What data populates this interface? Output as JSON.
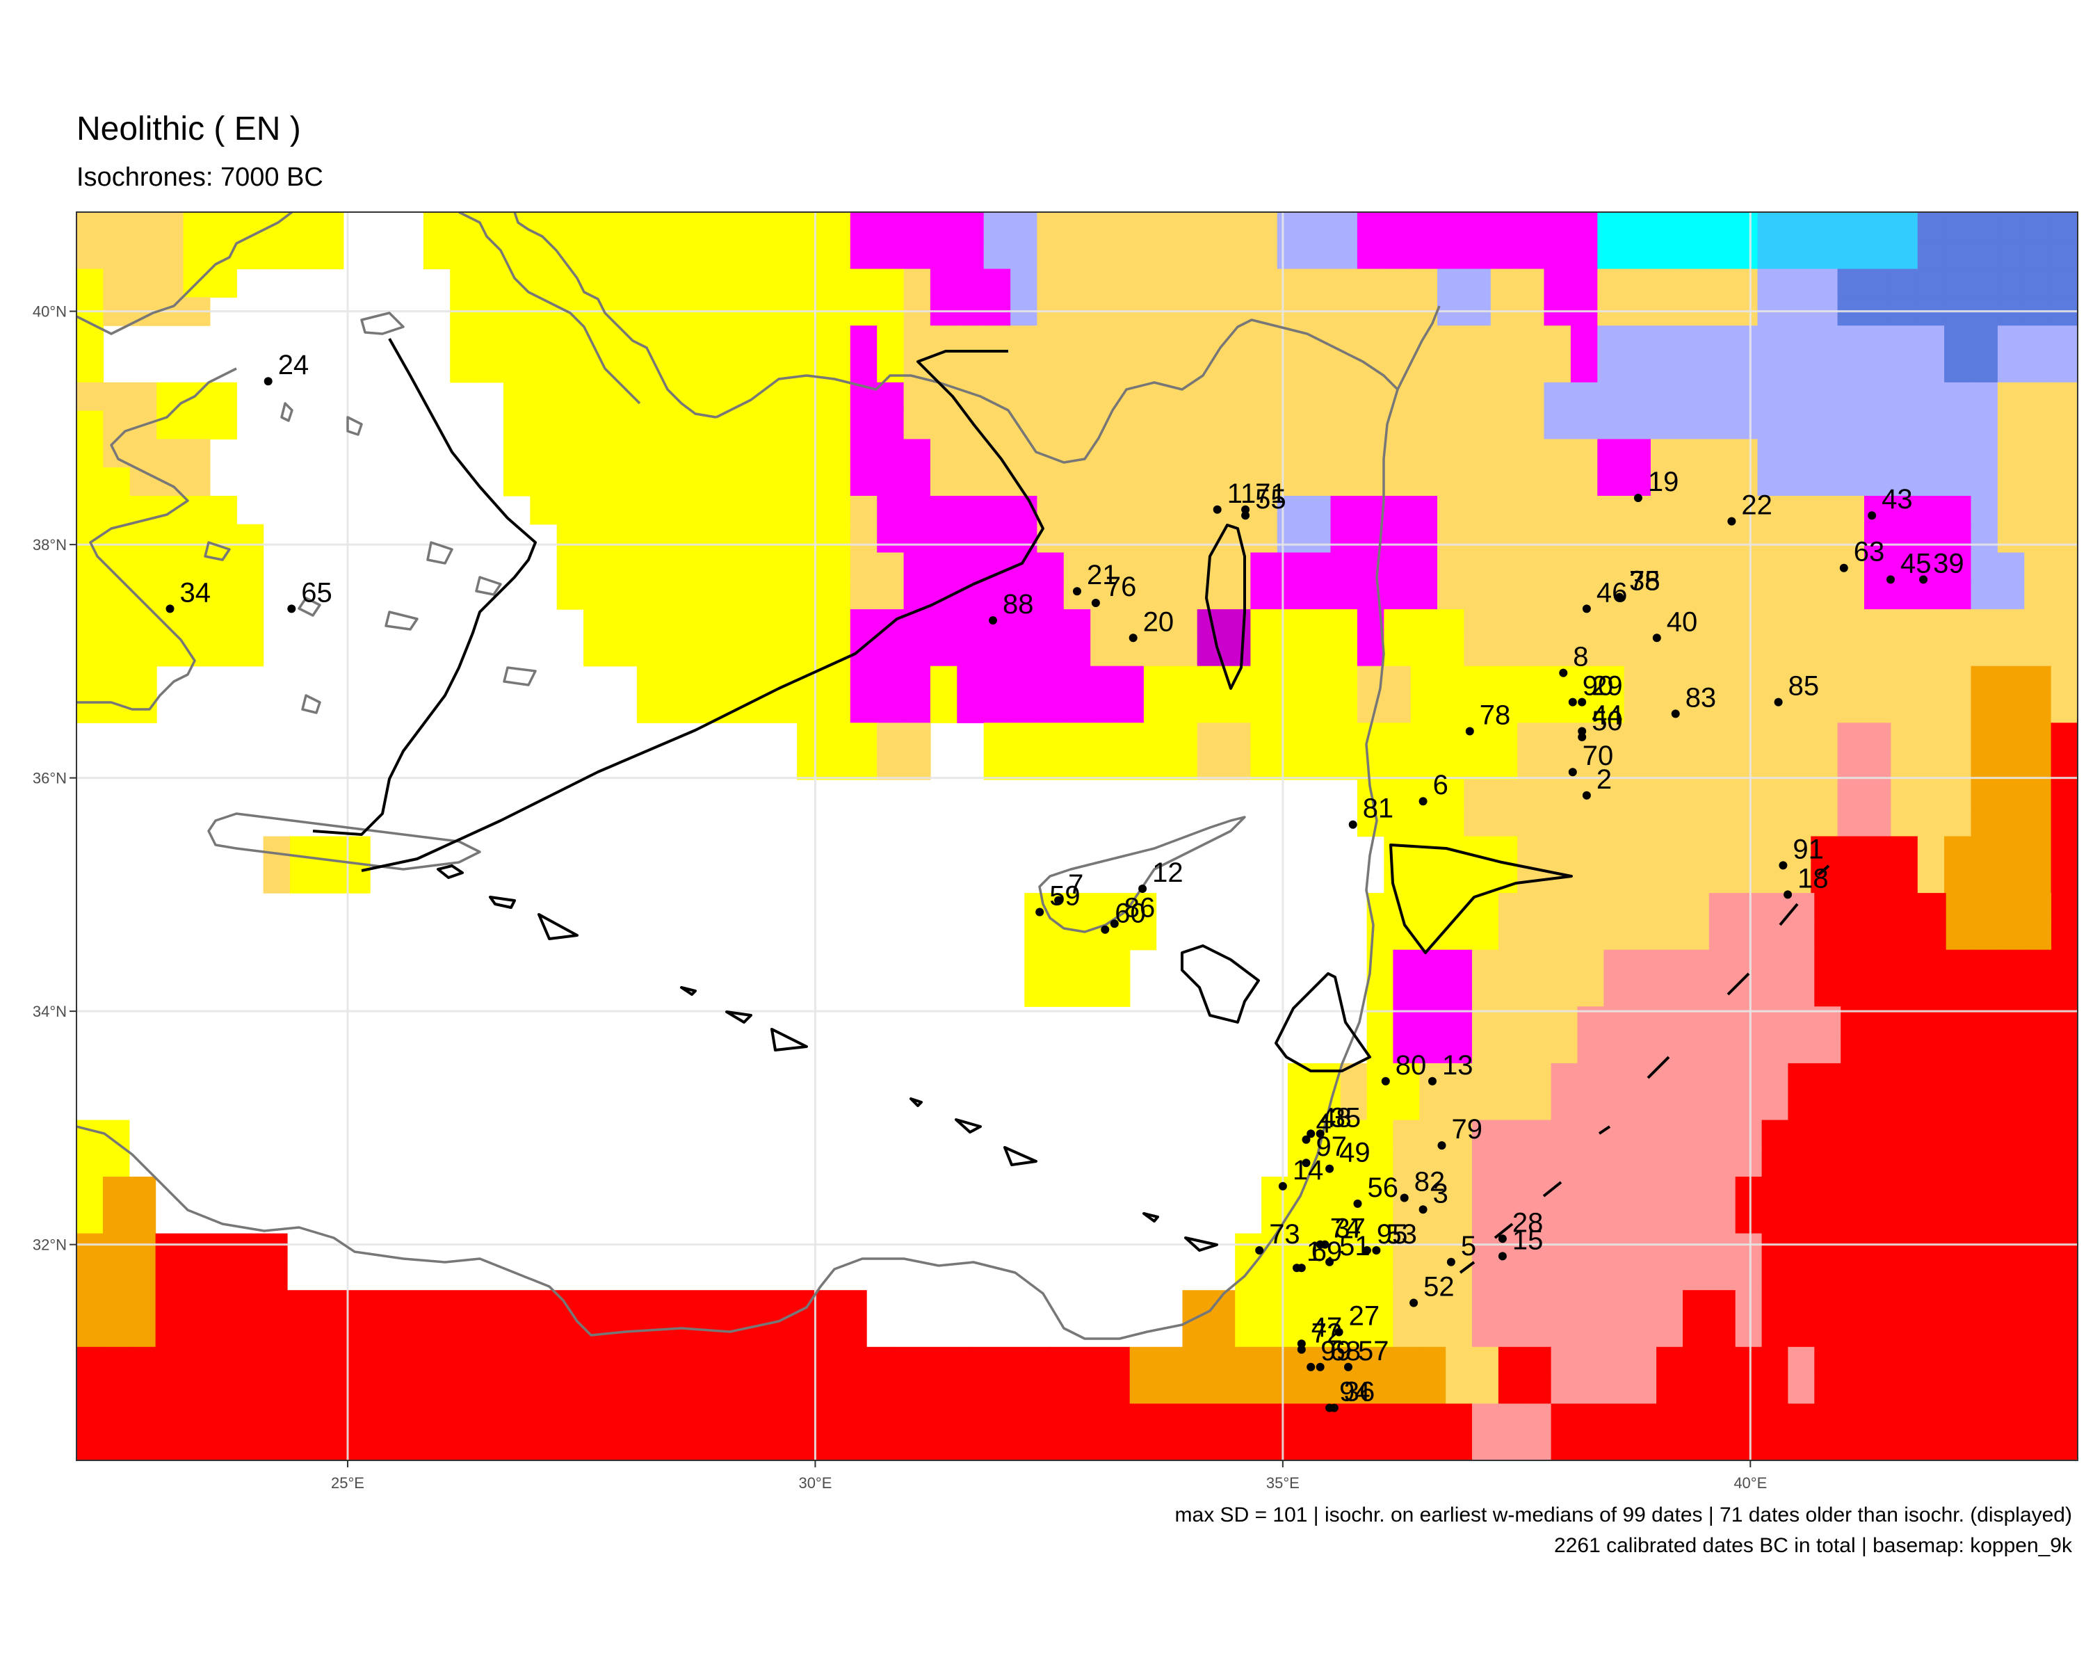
{
  "title": "Neolithic ( EN )",
  "subtitle": "Isochrones: 7000 BC",
  "footer": {
    "line1": "max SD = 101 | isochr. on earliest w-medians of 99 dates | 71 dates older than isochr. (displayed)",
    "line2": "2261 calibrated dates BC in total | basemap: koppen_9k"
  },
  "axes": {
    "x_ticks": [
      {
        "value": 25,
        "label": "25°E"
      },
      {
        "value": 30,
        "label": "30°E"
      },
      {
        "value": 35,
        "label": "35°E"
      },
      {
        "value": 40,
        "label": "40°E"
      }
    ],
    "y_ticks": [
      {
        "value": 32,
        "label": "32°N"
      },
      {
        "value": 34,
        "label": "34°N"
      },
      {
        "value": 36,
        "label": "36°N"
      },
      {
        "value": 38,
        "label": "38°N"
      },
      {
        "value": 40,
        "label": "40°N"
      }
    ],
    "lon_range": [
      22.1,
      43.5
    ],
    "lat_range": [
      30.15,
      40.85
    ]
  },
  "colors": {
    "Y": "#ffff00",
    "P": "#ffd966",
    "M": "#ff00ff",
    "L": "#aab0ff",
    "D": "#5b7bdf",
    "C": "#00ffff",
    "S": "#33ccff",
    "O": "#f4a300",
    "K": "#ff9999",
    "R": "#ff0000",
    "V": "#cc00cc",
    "coast": "#777777",
    "isochrone": "#000000"
  },
  "chart_data": {
    "type": "scatter",
    "sites": [
      {
        "label": "1",
        "lon": 35.15,
        "lat": 31.8
      },
      {
        "label": "2",
        "lon": 38.25,
        "lat": 35.85
      },
      {
        "label": "3",
        "lon": 36.5,
        "lat": 32.3
      },
      {
        "label": "4",
        "lon": 35.25,
        "lat": 32.9
      },
      {
        "label": "5",
        "lon": 36.8,
        "lat": 31.85
      },
      {
        "label": "6",
        "lon": 36.5,
        "lat": 35.8
      },
      {
        "label": "7",
        "lon": 32.6,
        "lat": 34.95
      },
      {
        "label": "8",
        "lon": 38.0,
        "lat": 36.9
      },
      {
        "label": "11",
        "lon": 34.3,
        "lat": 38.3
      },
      {
        "label": "12",
        "lon": 33.5,
        "lat": 35.05
      },
      {
        "label": "13",
        "lon": 36.6,
        "lat": 33.4
      },
      {
        "label": "14",
        "lon": 35.0,
        "lat": 32.5
      },
      {
        "label": "15",
        "lon": 37.35,
        "lat": 31.9
      },
      {
        "label": "18",
        "lon": 40.4,
        "lat": 35.0
      },
      {
        "label": "19",
        "lon": 38.8,
        "lat": 38.4
      },
      {
        "label": "20",
        "lon": 33.4,
        "lat": 37.2
      },
      {
        "label": "21",
        "lon": 32.8,
        "lat": 37.6
      },
      {
        "label": "22",
        "lon": 39.8,
        "lat": 38.2
      },
      {
        "label": "24",
        "lon": 24.15,
        "lat": 39.4
      },
      {
        "label": "27",
        "lon": 35.6,
        "lat": 31.25
      },
      {
        "label": "28",
        "lon": 37.35,
        "lat": 32.05
      },
      {
        "label": "29",
        "lon": 38.2,
        "lat": 36.65
      },
      {
        "label": "34",
        "lon": 23.1,
        "lat": 37.45
      },
      {
        "label": "35",
        "lon": 35.4,
        "lat": 32.95
      },
      {
        "label": "36",
        "lon": 35.55,
        "lat": 30.6
      },
      {
        "label": "37",
        "lon": 35.45,
        "lat": 32.0
      },
      {
        "label": "38",
        "lon": 38.6,
        "lat": 37.55
      },
      {
        "label": "39",
        "lon": 41.85,
        "lat": 37.7
      },
      {
        "label": "40",
        "lon": 39.0,
        "lat": 37.2
      },
      {
        "label": "43",
        "lon": 41.3,
        "lat": 38.25
      },
      {
        "label": "44",
        "lon": 38.2,
        "lat": 36.4
      },
      {
        "label": "45",
        "lon": 41.5,
        "lat": 37.7
      },
      {
        "label": "46",
        "lon": 38.25,
        "lat": 37.45
      },
      {
        "label": "47",
        "lon": 35.2,
        "lat": 31.15
      },
      {
        "label": "48",
        "lon": 35.3,
        "lat": 32.95
      },
      {
        "label": "49",
        "lon": 35.5,
        "lat": 32.65
      },
      {
        "label": "50",
        "lon": 38.2,
        "lat": 36.35
      },
      {
        "label": "51",
        "lon": 35.5,
        "lat": 31.85
      },
      {
        "label": "52",
        "lon": 36.4,
        "lat": 31.5
      },
      {
        "label": "53",
        "lon": 36.0,
        "lat": 31.95
      },
      {
        "label": "55",
        "lon": 34.6,
        "lat": 38.25
      },
      {
        "label": "56",
        "lon": 35.8,
        "lat": 32.35
      },
      {
        "label": "57",
        "lon": 35.7,
        "lat": 30.95
      },
      {
        "label": "59",
        "lon": 32.4,
        "lat": 34.85
      },
      {
        "label": "60",
        "lon": 33.1,
        "lat": 34.7
      },
      {
        "label": "63",
        "lon": 41.0,
        "lat": 37.8
      },
      {
        "label": "65",
        "lon": 24.4,
        "lat": 37.45
      },
      {
        "label": "68",
        "lon": 35.4,
        "lat": 30.95
      },
      {
        "label": "69",
        "lon": 35.2,
        "lat": 31.8
      },
      {
        "label": "70",
        "lon": 38.1,
        "lat": 36.05
      },
      {
        "label": "71",
        "lon": 34.6,
        "lat": 38.3
      },
      {
        "label": "72",
        "lon": 35.2,
        "lat": 31.1
      },
      {
        "label": "73",
        "lon": 34.75,
        "lat": 31.95
      },
      {
        "label": "74",
        "lon": 35.4,
        "lat": 32.0
      },
      {
        "label": "75",
        "lon": 38.6,
        "lat": 37.55
      },
      {
        "label": "76",
        "lon": 33.0,
        "lat": 37.5
      },
      {
        "label": "78",
        "lon": 37.0,
        "lat": 36.4
      },
      {
        "label": "79",
        "lon": 36.7,
        "lat": 32.85
      },
      {
        "label": "80",
        "lon": 36.1,
        "lat": 33.4
      },
      {
        "label": "81",
        "lon": 35.75,
        "lat": 35.6
      },
      {
        "label": "82",
        "lon": 36.3,
        "lat": 32.4
      },
      {
        "label": "83",
        "lon": 39.2,
        "lat": 36.55
      },
      {
        "label": "85",
        "lon": 40.3,
        "lat": 36.65
      },
      {
        "label": "86",
        "lon": 33.2,
        "lat": 34.75
      },
      {
        "label": "88",
        "lon": 31.9,
        "lat": 37.35
      },
      {
        "label": "90",
        "lon": 38.1,
        "lat": 36.65
      },
      {
        "label": "91",
        "lon": 40.35,
        "lat": 35.25
      },
      {
        "label": "94",
        "lon": 35.5,
        "lat": 30.6
      },
      {
        "label": "95",
        "lon": 35.9,
        "lat": 31.95
      },
      {
        "label": "97",
        "lon": 35.25,
        "lat": 32.7
      },
      {
        "label": "99",
        "lon": 35.3,
        "lat": 30.95
      }
    ]
  }
}
